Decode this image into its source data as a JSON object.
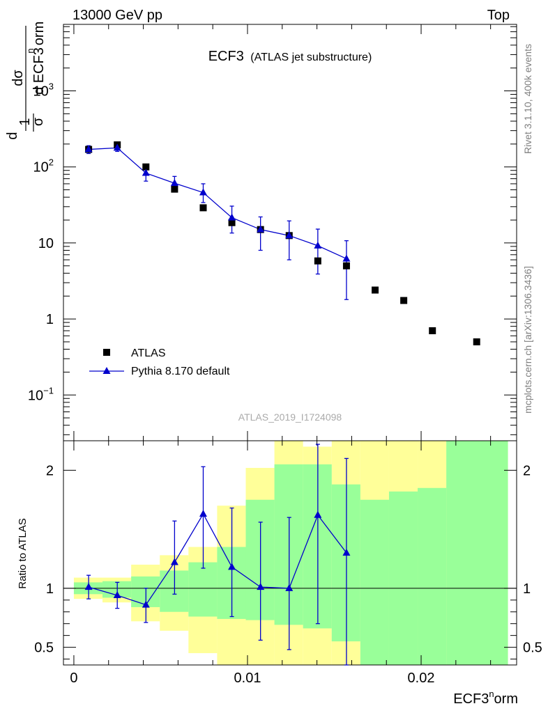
{
  "header": {
    "left": "13000 GeV pp",
    "right": "Top"
  },
  "side_labels": {
    "rivet": "Rivet 3.1.10,  400k events",
    "mcplots": "mcplots.cern.ch [arXiv:1306.3436]"
  },
  "colors": {
    "data": "#000000",
    "mc": "#0000cc",
    "band_inner": "#99ff99",
    "band_outer": "#ffff99"
  },
  "chart_data": [
    {
      "type": "scatter",
      "title": "ECF3",
      "subtitle": "(ATLAS jet substructure)",
      "watermark": "ATLAS_2019_I1724098",
      "ylabel": "1/σ dσ/d ECF3^norm",
      "yscale": "log",
      "xlim": [
        -0.0006,
        0.0255
      ],
      "ylim": [
        0.025,
        7500
      ],
      "yticks": [
        {
          "value": 0.1,
          "base": "10",
          "exp": "−1"
        },
        {
          "value": 1,
          "base": "1",
          "exp": ""
        },
        {
          "value": 10,
          "base": "10",
          "exp": ""
        },
        {
          "value": 100,
          "base": "10",
          "exp": "2"
        },
        {
          "value": 1000,
          "base": "10",
          "exp": "3"
        }
      ],
      "legend_position": "bottom-left",
      "series": [
        {
          "name": "ATLAS",
          "style": "markers-square",
          "x": [
            0.00085,
            0.0025,
            0.00415,
            0.0058,
            0.00745,
            0.0091,
            0.01075,
            0.0124,
            0.01405,
            0.0157,
            0.01735,
            0.019,
            0.02065,
            0.0232
          ],
          "y": [
            170,
            195,
            100,
            51,
            29,
            18.5,
            15,
            12.5,
            5.8,
            5.0,
            2.4,
            1.75,
            0.7,
            0.5
          ]
        },
        {
          "name": "Pythia 8.170 default",
          "style": "line-triangle",
          "x": [
            0.00085,
            0.0025,
            0.00415,
            0.0058,
            0.00745,
            0.0091,
            0.01075,
            0.0124,
            0.01405,
            0.0157
          ],
          "y": [
            170,
            178,
            83,
            61,
            46,
            21.5,
            15,
            12.5,
            9.2,
            6.2
          ],
          "yerr_low": [
            20,
            18,
            18,
            13,
            12,
            8,
            7,
            6.5,
            5.3,
            4.4
          ],
          "yerr_high": [
            20,
            18,
            18,
            14,
            14,
            9,
            7,
            7,
            6,
            4.5
          ]
        }
      ]
    },
    {
      "type": "line",
      "ylabel": "Ratio to ATLAS",
      "xlabel": "ECF3^norm",
      "xlim": [
        -0.0006,
        0.0255
      ],
      "ylim": [
        0.35,
        2.25
      ],
      "xticks": [
        {
          "value": 0,
          "label": "0"
        },
        {
          "value": 0.01,
          "label": "0.01"
        },
        {
          "value": 0.02,
          "label": "0.02"
        }
      ],
      "yticks": [
        {
          "value": 0.5,
          "label": "0.5"
        },
        {
          "value": 1,
          "label": "1"
        },
        {
          "value": 2,
          "label": "2"
        }
      ],
      "reference_line": 1,
      "bands": {
        "edges": [
          0,
          0.00165,
          0.0033,
          0.00495,
          0.0066,
          0.00825,
          0.0099,
          0.01155,
          0.0132,
          0.01485,
          0.0165,
          0.01815,
          0.0198,
          0.02145,
          0.025
        ],
        "inner_low": [
          0.95,
          0.92,
          0.84,
          0.8,
          0.76,
          0.74,
          0.73,
          0.69,
          0.66,
          0.55,
          0.35,
          0.35,
          0.35,
          0.35
        ],
        "inner_high": [
          1.05,
          1.06,
          1.1,
          1.15,
          1.22,
          1.35,
          1.75,
          2.05,
          2.05,
          1.88,
          1.75,
          1.82,
          1.85,
          2.25
        ],
        "outer_low": [
          0.91,
          0.88,
          0.72,
          0.64,
          0.45,
          0.35,
          0.35,
          0.35,
          0.35,
          0.35,
          0.35,
          0.35,
          0.35,
          0.35
        ],
        "outer_high": [
          1.09,
          1.09,
          1.2,
          1.28,
          1.35,
          1.7,
          2.02,
          2.25,
          2.2,
          2.25,
          2.25,
          2.25,
          2.25,
          2.25
        ]
      },
      "series": [
        {
          "name": "Pythia 8.170 default",
          "x": [
            0.00085,
            0.0025,
            0.00415,
            0.0058,
            0.00745,
            0.0091,
            0.01075,
            0.0124,
            0.01405,
            0.0157
          ],
          "y": [
            1.01,
            0.94,
            0.86,
            1.22,
            1.63,
            1.18,
            1.01,
            1.0,
            1.62,
            1.3
          ],
          "yerr_low": [
            0.1,
            0.11,
            0.15,
            0.27,
            0.46,
            0.42,
            0.45,
            0.52,
            0.92,
            0.95
          ],
          "yerr_high": [
            0.1,
            0.11,
            0.14,
            0.35,
            0.4,
            0.5,
            0.55,
            0.6,
            0.6,
            0.8
          ]
        }
      ]
    }
  ]
}
